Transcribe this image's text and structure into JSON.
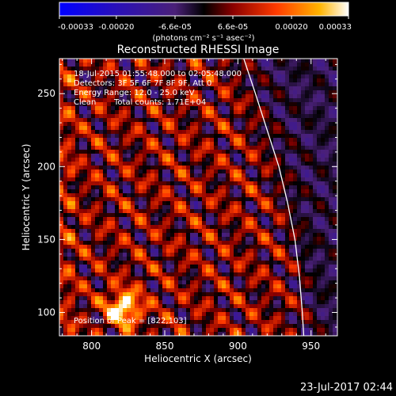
{
  "chart_data": {
    "type": "heatmap",
    "title": "Reconstructed RHESSI Image",
    "xlabel": "Heliocentric X (arcsec)",
    "ylabel": "Heliocentric Y (arcsec)",
    "xlim": [
      778,
      968
    ],
    "ylim": [
      84,
      274
    ],
    "xticks": [
      800,
      850,
      900,
      950
    ],
    "yticks": [
      100,
      150,
      200,
      250
    ],
    "grid": false,
    "colorbar": {
      "min": -0.00033,
      "max": 0.00033,
      "tick_values": [
        -0.00033,
        -0.0002,
        -6.6e-05,
        6.6e-05,
        0.0002,
        0.00033
      ],
      "tick_labels": [
        "-0.00033",
        "-0.00020",
        "-6.6e-05",
        "6.6e-05",
        "0.00020",
        "0.00033"
      ],
      "unit_label": "(photons cm⁻² s⁻¹ asec⁻²)"
    },
    "annotations": {
      "time": "18-Jul-2015 01:55:48.000 to 02:05:48.000",
      "detectors": "Detectors: 3F 5F 6F 7F 8F 9F, Att 0",
      "energy": "Energy Range: 12.0 - 25.0 keV",
      "clean_label": "Clean",
      "counts": "Total counts: 1.71E+04",
      "peak": "Position of Peak = [822,103]"
    },
    "peak": {
      "x": 822,
      "y": 103
    },
    "limb_curve": [
      [
        904,
        274
      ],
      [
        912,
        250
      ],
      [
        920,
        225
      ],
      [
        928,
        200
      ],
      [
        934,
        175
      ],
      [
        939,
        150
      ],
      [
        942,
        125
      ],
      [
        944,
        100
      ],
      [
        945,
        84
      ]
    ],
    "colors": {
      "line": "#ffffff",
      "background": "#000000"
    }
  },
  "footer": {
    "date": "23-Jul-2017 02:44"
  }
}
